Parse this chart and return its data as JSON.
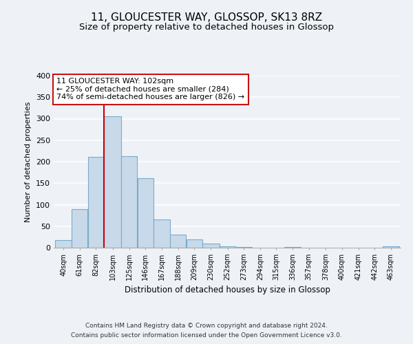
{
  "title": "11, GLOUCESTER WAY, GLOSSOP, SK13 8RZ",
  "subtitle": "Size of property relative to detached houses in Glossop",
  "xlabel": "Distribution of detached houses by size in Glossop",
  "ylabel": "Number of detached properties",
  "bar_color": "#c8d9ea",
  "bar_edge_color": "#7aaac8",
  "bin_labels": [
    "40sqm",
    "61sqm",
    "82sqm",
    "103sqm",
    "125sqm",
    "146sqm",
    "167sqm",
    "188sqm",
    "209sqm",
    "230sqm",
    "252sqm",
    "273sqm",
    "294sqm",
    "315sqm",
    "336sqm",
    "357sqm",
    "378sqm",
    "400sqm",
    "421sqm",
    "442sqm",
    "463sqm"
  ],
  "bar_heights": [
    17,
    90,
    212,
    305,
    213,
    161,
    65,
    30,
    20,
    10,
    4,
    1,
    0,
    0,
    1,
    0,
    0,
    0,
    0,
    0,
    3
  ],
  "bin_edges": [
    40,
    61,
    82,
    103,
    125,
    146,
    167,
    188,
    209,
    230,
    252,
    273,
    294,
    315,
    336,
    357,
    378,
    400,
    421,
    442,
    463,
    484
  ],
  "ylim": [
    0,
    400
  ],
  "yticks": [
    0,
    50,
    100,
    150,
    200,
    250,
    300,
    350,
    400
  ],
  "property_line_x": 103,
  "property_line_color": "#cc0000",
  "annotation_text": "11 GLOUCESTER WAY: 102sqm\n← 25% of detached houses are smaller (284)\n74% of semi-detached houses are larger (826) →",
  "footer_line1": "Contains HM Land Registry data © Crown copyright and database right 2024.",
  "footer_line2": "Contains public sector information licensed under the Open Government Licence v3.0.",
  "background_color": "#eef2f7",
  "grid_color": "#ffffff",
  "title_fontsize": 11,
  "subtitle_fontsize": 9.5
}
